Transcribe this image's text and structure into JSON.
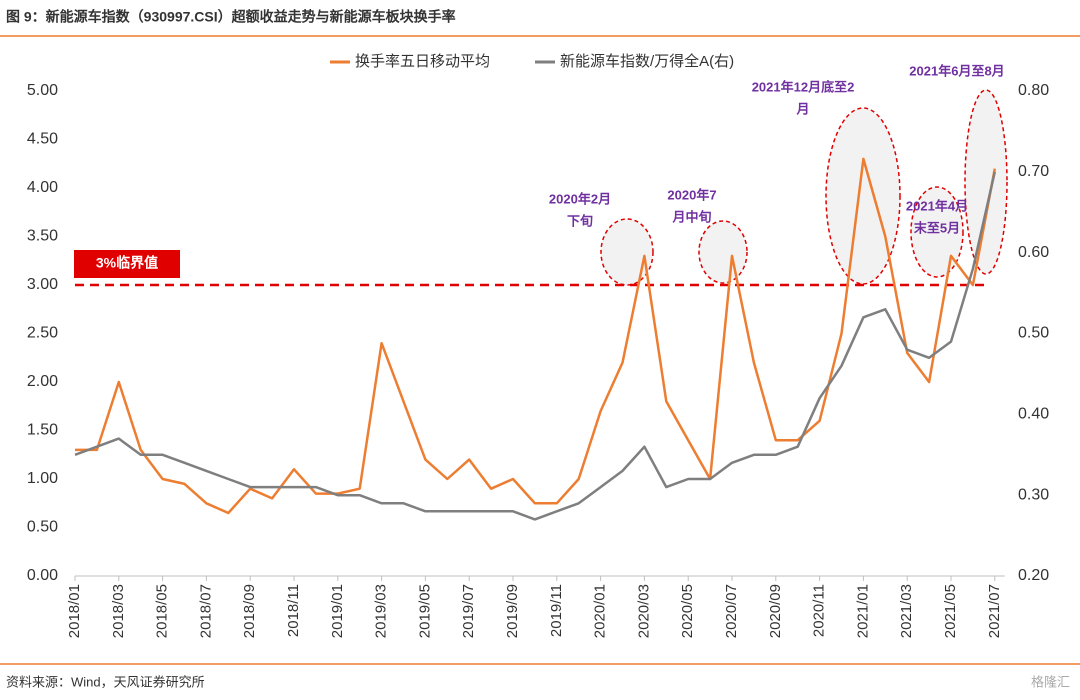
{
  "chart_data": {
    "type": "line",
    "title": "图 9：新能源车指数（930997.CSI）超额收益走势与新能源车板块换手率",
    "source": "资料来源：Wind，天风证券研究所",
    "watermark": "格隆汇",
    "categories": [
      "2018/01",
      null,
      "2018/03",
      null,
      "2018/05",
      null,
      "2018/07",
      null,
      "2018/09",
      null,
      "2018/11",
      null,
      "2019/01",
      null,
      "2019/03",
      null,
      "2019/05",
      null,
      "2019/07",
      null,
      "2019/09",
      null,
      "2019/11",
      null,
      "2020/01",
      null,
      "2020/03",
      null,
      "2020/05",
      null,
      "2020/07",
      null,
      "2020/09",
      null,
      "2020/11",
      null,
      "2021/01",
      null,
      "2021/03",
      null,
      "2021/05",
      null,
      "2021/07"
    ],
    "series": [
      {
        "name": "换手率五日移动平均",
        "color": "#ed7d31",
        "values": [
          1.3,
          1.3,
          2.0,
          1.3,
          1.0,
          0.95,
          0.75,
          0.65,
          0.9,
          0.8,
          1.1,
          0.85,
          0.85,
          0.9,
          2.4,
          1.8,
          1.2,
          1.0,
          1.2,
          0.9,
          1.0,
          0.75,
          0.75,
          1.0,
          1.7,
          2.2,
          3.3,
          1.8,
          1.4,
          1.0,
          3.3,
          2.2,
          1.4,
          1.4,
          1.6,
          2.5,
          4.3,
          3.5,
          2.3,
          2.0,
          3.3,
          3.0,
          4.2
        ]
      },
      {
        "name": "新能源车指数/万得全A(右)",
        "color": "#7f7f7f",
        "axis": "y2",
        "values": [
          0.35,
          0.36,
          0.37,
          0.35,
          0.35,
          0.34,
          0.33,
          0.32,
          0.31,
          0.31,
          0.31,
          0.31,
          0.3,
          0.3,
          0.29,
          0.29,
          0.28,
          0.28,
          0.28,
          0.28,
          0.28,
          0.27,
          0.28,
          0.29,
          0.31,
          0.33,
          0.36,
          0.31,
          0.32,
          0.32,
          0.34,
          0.35,
          0.35,
          0.36,
          0.42,
          0.46,
          0.52,
          0.53,
          0.48,
          0.47,
          0.49,
          0.58,
          0.7
        ]
      }
    ],
    "ylim": [
      0,
      5
    ],
    "yticks": [
      {
        "value": 0,
        "label": "0.00"
      },
      {
        "value": 0.5,
        "label": "0.50"
      },
      {
        "value": 1,
        "label": "1.00"
      },
      {
        "value": 1.5,
        "label": "1.50"
      },
      {
        "value": 2,
        "label": "2.00"
      },
      {
        "value": 2.5,
        "label": "2.50"
      },
      {
        "value": 3,
        "label": "3.00"
      },
      {
        "value": 3.5,
        "label": "3.50"
      },
      {
        "value": 4,
        "label": "4.00"
      },
      {
        "value": 4.5,
        "label": "4.50"
      },
      {
        "value": 5,
        "label": "5.00"
      }
    ],
    "y2lim": [
      0.2,
      0.8
    ],
    "y2ticks": [
      {
        "value": 0.2,
        "label": "0.20"
      },
      {
        "value": 0.3,
        "label": "0.30"
      },
      {
        "value": 0.4,
        "label": "0.40"
      },
      {
        "value": 0.5,
        "label": "0.50"
      },
      {
        "value": 0.6,
        "label": "0.60"
      },
      {
        "value": 0.7,
        "label": "0.70"
      },
      {
        "value": 0.8,
        "label": "0.80"
      }
    ],
    "threshold": {
      "value": 3,
      "label": "3%临界值",
      "color": "#e00000"
    },
    "annotations": [
      {
        "lines": [
          "2020年2月",
          "下旬"
        ]
      },
      {
        "lines": [
          "2020年7",
          "月中旬"
        ]
      },
      {
        "lines": [
          "2021年12月底至2",
          "月"
        ]
      },
      {
        "lines": [
          "2021年4月",
          "末至5月"
        ]
      },
      {
        "lines": [
          "2021年6月至8月"
        ]
      }
    ]
  }
}
